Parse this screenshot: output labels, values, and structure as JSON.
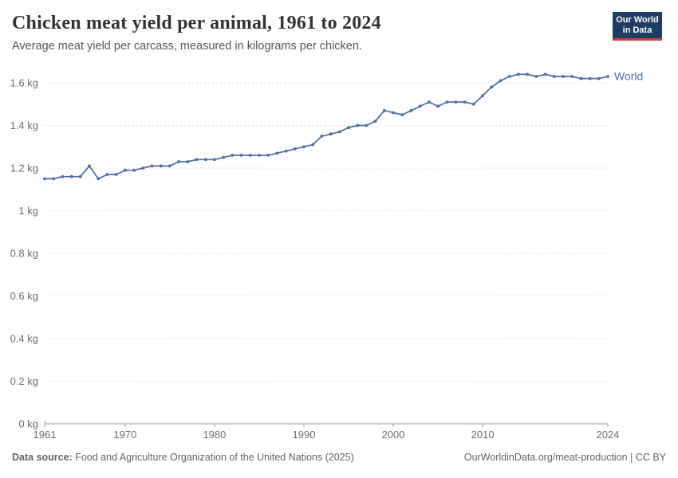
{
  "header": {
    "title": "Chicken meat yield per animal, 1961 to 2024",
    "subtitle": "Average meat yield per carcass, measured in kilograms per chicken."
  },
  "logo": {
    "line1": "Our World",
    "line2": "in Data",
    "bg_color": "#1d3d63",
    "stripe_color": "#e2363f"
  },
  "chart_data": {
    "type": "line",
    "title": "Chicken meat yield per animal, 1961 to 2024",
    "subtitle": "Average meat yield per carcass, measured in kilograms per chicken.",
    "unit": "kg",
    "xlabel": "",
    "ylabel": "",
    "xlim": [
      1961,
      2024
    ],
    "ylim": [
      0,
      1.7
    ],
    "grid": "horizontal-dashed",
    "legend": "line-end-label",
    "x_ticks": [
      1961,
      1970,
      1980,
      1990,
      2000,
      2010,
      2024
    ],
    "y_ticks": [
      {
        "value": 0,
        "label": "0 kg"
      },
      {
        "value": 0.2,
        "label": "0.2 kg"
      },
      {
        "value": 0.4,
        "label": "0.4 kg"
      },
      {
        "value": 0.6,
        "label": "0.6 kg"
      },
      {
        "value": 0.8,
        "label": "0.8 kg"
      },
      {
        "value": 1,
        "label": "1 kg"
      },
      {
        "value": 1.2,
        "label": "1.2 kg"
      },
      {
        "value": 1.4,
        "label": "1.4 kg"
      },
      {
        "value": 1.6,
        "label": "1.6 kg"
      }
    ],
    "series": [
      {
        "name": "World",
        "color": "#4c6ba5",
        "x": [
          1961,
          1962,
          1963,
          1964,
          1965,
          1966,
          1967,
          1968,
          1969,
          1970,
          1971,
          1972,
          1973,
          1974,
          1975,
          1976,
          1977,
          1978,
          1979,
          1980,
          1981,
          1982,
          1983,
          1984,
          1985,
          1986,
          1987,
          1988,
          1989,
          1990,
          1991,
          1992,
          1993,
          1994,
          1995,
          1996,
          1997,
          1998,
          1999,
          2000,
          2001,
          2002,
          2003,
          2004,
          2005,
          2006,
          2007,
          2008,
          2009,
          2010,
          2011,
          2012,
          2013,
          2014,
          2015,
          2016,
          2017,
          2018,
          2019,
          2020,
          2021,
          2022,
          2023,
          2024
        ],
        "values": [
          1.15,
          1.15,
          1.16,
          1.16,
          1.16,
          1.21,
          1.15,
          1.17,
          1.17,
          1.19,
          1.19,
          1.2,
          1.21,
          1.21,
          1.21,
          1.23,
          1.23,
          1.24,
          1.24,
          1.24,
          1.25,
          1.26,
          1.26,
          1.26,
          1.26,
          1.26,
          1.27,
          1.28,
          1.29,
          1.3,
          1.31,
          1.35,
          1.36,
          1.37,
          1.39,
          1.4,
          1.4,
          1.42,
          1.47,
          1.46,
          1.45,
          1.47,
          1.49,
          1.51,
          1.49,
          1.51,
          1.51,
          1.51,
          1.5,
          1.54,
          1.58,
          1.61,
          1.63,
          1.64,
          1.64,
          1.63,
          1.64,
          1.63,
          1.63,
          1.63,
          1.62,
          1.62,
          1.62,
          1.63
        ]
      }
    ],
    "theme": {
      "grid_color": "#dcdcdc",
      "axis_color": "#9e9e9e",
      "tick_label_color": "#6d6d6d"
    }
  },
  "footer": {
    "source_label": "Data source:",
    "source_text": " Food and Agriculture Organization of the United Nations (2025)",
    "credit": "OurWorldinData.org/meat-production | CC BY"
  }
}
